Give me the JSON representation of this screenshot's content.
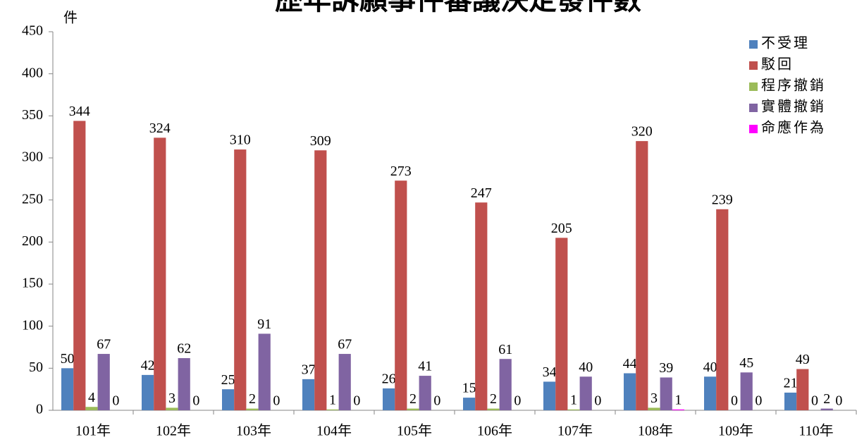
{
  "chart_data": {
    "type": "bar",
    "title": "歷年訴願事件審議決定發件數",
    "y_label": "件",
    "categories": [
      "101年",
      "102年",
      "103年",
      "104年",
      "105年",
      "106年",
      "107年",
      "108年",
      "109年",
      "110年"
    ],
    "series": [
      {
        "name": "不受理",
        "color": "#4f81bd",
        "values": [
          50,
          42,
          25,
          37,
          26,
          15,
          34,
          44,
          40,
          21
        ]
      },
      {
        "name": "駁回",
        "color": "#c0504d",
        "values": [
          344,
          324,
          310,
          309,
          273,
          247,
          205,
          320,
          239,
          49
        ]
      },
      {
        "name": "程序撤銷",
        "color": "#9bbb59",
        "values": [
          4,
          3,
          2,
          1,
          2,
          2,
          1,
          3,
          0,
          0
        ]
      },
      {
        "name": "實體撤銷",
        "color": "#8064a2",
        "values": [
          67,
          62,
          91,
          67,
          41,
          61,
          40,
          39,
          45,
          2
        ]
      },
      {
        "name": "命應作為",
        "color": "#ff00ff",
        "values": [
          0,
          0,
          0,
          0,
          0,
          0,
          0,
          1,
          0,
          0
        ]
      }
    ],
    "ylim": [
      0,
      450
    ],
    "yticks": [
      0,
      50,
      100,
      150,
      200,
      250,
      300,
      350,
      400,
      450
    ],
    "legend": "top-right"
  }
}
